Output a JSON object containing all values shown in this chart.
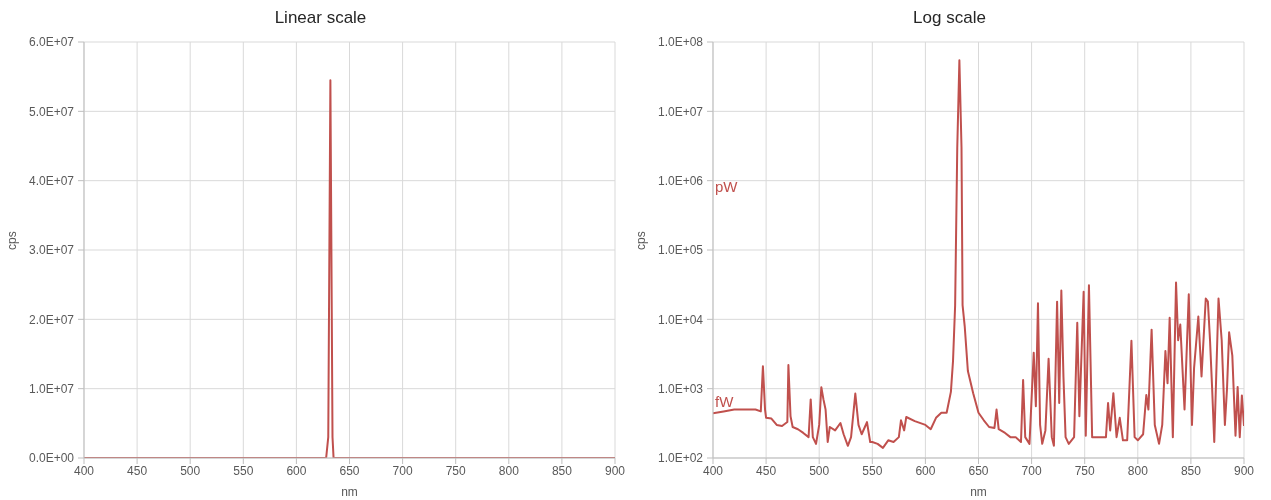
{
  "chart_data": [
    {
      "type": "line",
      "title": "Linear scale",
      "xlabel": "nm",
      "ylabel": "cps",
      "grid": true,
      "marker": "none",
      "line_style": "solid",
      "legend": false,
      "xlim": [
        400,
        900
      ],
      "xticks": [
        400,
        450,
        500,
        550,
        600,
        650,
        700,
        750,
        800,
        850,
        900
      ],
      "ylim": [
        0,
        60000000
      ],
      "yticks": [
        {
          "value": 0,
          "label": "0.0E+00"
        },
        {
          "value": 10000000,
          "label": "1.0E+07"
        },
        {
          "value": 20000000,
          "label": "2.0E+07"
        },
        {
          "value": 30000000,
          "label": "3.0E+07"
        },
        {
          "value": 40000000,
          "label": "4.0E+07"
        },
        {
          "value": 50000000,
          "label": "5.0E+07"
        },
        {
          "value": 60000000,
          "label": "6.0E+07"
        }
      ],
      "x": [
        400,
        410,
        420,
        430,
        440,
        445,
        447,
        449,
        450,
        455,
        460,
        465,
        470,
        471,
        473,
        475,
        480,
        485,
        490,
        492,
        494,
        497,
        500,
        502,
        504,
        506,
        508,
        510,
        515,
        520,
        523,
        527,
        530,
        534,
        537,
        540,
        543,
        545,
        548,
        550,
        555,
        560,
        565,
        570,
        575,
        577,
        580,
        582,
        590,
        600,
        605,
        610,
        615,
        620,
        624,
        626,
        628,
        630,
        632,
        634,
        635,
        637,
        640,
        645,
        650,
        655,
        660,
        665,
        667,
        669,
        675,
        680,
        685,
        690,
        692,
        694,
        698,
        702,
        704,
        706,
        708,
        710,
        713,
        716,
        719,
        721,
        724,
        726,
        728,
        730,
        732,
        735,
        740,
        743,
        745,
        749,
        751,
        754,
        757,
        760,
        765,
        770,
        772,
        774,
        777,
        780,
        783,
        786,
        790,
        794,
        797,
        800,
        805,
        808,
        810,
        813,
        816,
        820,
        823,
        826,
        828,
        830,
        833,
        836,
        838,
        840,
        844,
        848,
        851,
        853,
        857,
        860,
        864,
        866,
        868,
        870,
        872,
        876,
        879,
        882,
        884,
        886,
        889,
        892,
        894,
        896,
        898,
        900
      ],
      "series": [
        {
          "color": "#c0504d",
          "values": [
            0,
            0,
            0,
            0,
            0,
            0,
            0,
            0,
            0,
            0,
            0,
            0,
            0,
            0,
            0,
            0,
            0,
            0,
            0,
            0,
            0,
            0,
            0,
            0,
            0,
            0,
            0,
            0,
            0,
            0,
            0,
            0,
            0,
            0,
            0,
            0,
            0,
            0,
            0,
            0,
            0,
            0,
            0,
            0,
            0,
            0,
            0,
            0,
            0,
            0,
            0,
            0,
            0,
            0,
            0,
            0,
            0,
            3000000,
            54500000,
            3000000,
            0,
            0,
            0,
            0,
            0,
            0,
            0,
            0,
            0,
            0,
            0,
            0,
            0,
            0,
            0,
            0,
            0,
            0,
            0,
            0,
            0,
            0,
            0,
            0,
            0,
            0,
            0,
            0,
            0,
            0,
            0,
            0,
            0,
            0,
            0,
            0,
            0,
            0,
            0,
            0,
            0,
            0,
            0,
            0,
            0,
            0,
            0,
            0,
            0,
            0,
            0,
            0,
            0,
            0,
            0,
            0,
            0,
            0,
            0,
            0,
            0,
            0,
            0,
            0,
            0,
            0,
            0,
            0,
            0,
            0,
            0,
            0,
            0,
            0,
            0,
            0,
            0,
            0,
            0,
            0,
            0,
            0,
            0,
            0,
            0,
            0,
            0,
            0
          ]
        }
      ]
    },
    {
      "type": "line",
      "title": "Log scale",
      "xlabel": "nm",
      "ylabel": "cps",
      "grid": true,
      "marker": "none",
      "line_style": "solid",
      "legend": false,
      "log": "y",
      "annotations": [
        "pW",
        "fW"
      ],
      "xlim": [
        400,
        900
      ],
      "xticks": [
        400,
        450,
        500,
        550,
        600,
        650,
        700,
        750,
        800,
        850,
        900
      ],
      "ylim": [
        100,
        100000000
      ],
      "yticks": [
        {
          "value": 100,
          "label": "1.0E+02"
        },
        {
          "value": 1000,
          "label": "1.0E+03"
        },
        {
          "value": 10000,
          "label": "1.0E+04"
        },
        {
          "value": 100000,
          "label": "1.0E+05"
        },
        {
          "value": 1000000,
          "label": "1.0E+06"
        },
        {
          "value": 10000000,
          "label": "1.0E+07"
        },
        {
          "value": 100000000,
          "label": "1.0E+08"
        }
      ],
      "x": [
        400,
        410,
        420,
        430,
        440,
        445,
        447,
        449,
        450,
        455,
        460,
        465,
        470,
        471,
        473,
        475,
        480,
        485,
        490,
        492,
        494,
        497,
        500,
        502,
        504,
        506,
        508,
        510,
        515,
        520,
        523,
        527,
        530,
        534,
        537,
        540,
        543,
        545,
        548,
        550,
        555,
        560,
        565,
        570,
        575,
        577,
        580,
        582,
        590,
        600,
        605,
        610,
        615,
        620,
        624,
        626,
        628,
        630,
        632,
        634,
        635,
        637,
        640,
        645,
        650,
        655,
        660,
        665,
        667,
        669,
        675,
        680,
        685,
        690,
        692,
        694,
        698,
        702,
        704,
        706,
        708,
        710,
        713,
        716,
        719,
        721,
        724,
        726,
        728,
        730,
        732,
        735,
        740,
        743,
        745,
        749,
        751,
        754,
        757,
        760,
        765,
        770,
        772,
        774,
        777,
        780,
        783,
        786,
        790,
        794,
        797,
        800,
        805,
        808,
        810,
        813,
        816,
        820,
        823,
        826,
        828,
        830,
        833,
        836,
        838,
        840,
        844,
        848,
        851,
        853,
        857,
        860,
        864,
        866,
        868,
        870,
        872,
        876,
        879,
        882,
        884,
        886,
        889,
        892,
        894,
        896,
        898,
        900
      ],
      "series": [
        {
          "color": "#c0504d",
          "values": [
            440,
            470,
            500,
            500,
            500,
            470,
            2100,
            500,
            380,
            370,
            300,
            290,
            330,
            2200,
            400,
            280,
            260,
            230,
            200,
            700,
            200,
            160,
            300,
            1050,
            700,
            500,
            170,
            280,
            250,
            320,
            220,
            150,
            200,
            850,
            300,
            220,
            280,
            330,
            170,
            170,
            160,
            140,
            180,
            170,
            200,
            350,
            250,
            390,
            340,
            300,
            260,
            380,
            450,
            450,
            900,
            2500,
            16000,
            3000000,
            54500000,
            3000000,
            16000,
            8000,
            1800,
            860,
            450,
            350,
            280,
            270,
            500,
            260,
            230,
            200,
            200,
            170,
            1330,
            200,
            160,
            3300,
            560,
            17000,
            300,
            160,
            250,
            2700,
            200,
            150,
            18000,
            620,
            26000,
            1480,
            200,
            160,
            200,
            8900,
            400,
            25000,
            210,
            31000,
            200,
            200,
            200,
            200,
            620,
            250,
            860,
            200,
            380,
            180,
            180,
            4900,
            200,
            180,
            220,
            810,
            500,
            7100,
            300,
            160,
            300,
            3500,
            1200,
            10500,
            200,
            34000,
            5000,
            8400,
            500,
            23000,
            300,
            2000,
            11000,
            1500,
            20000,
            18000,
            5000,
            1000,
            170,
            20000,
            5000,
            300,
            1000,
            6500,
            3000,
            210,
            1060,
            200,
            800,
            290
          ]
        }
      ]
    }
  ]
}
